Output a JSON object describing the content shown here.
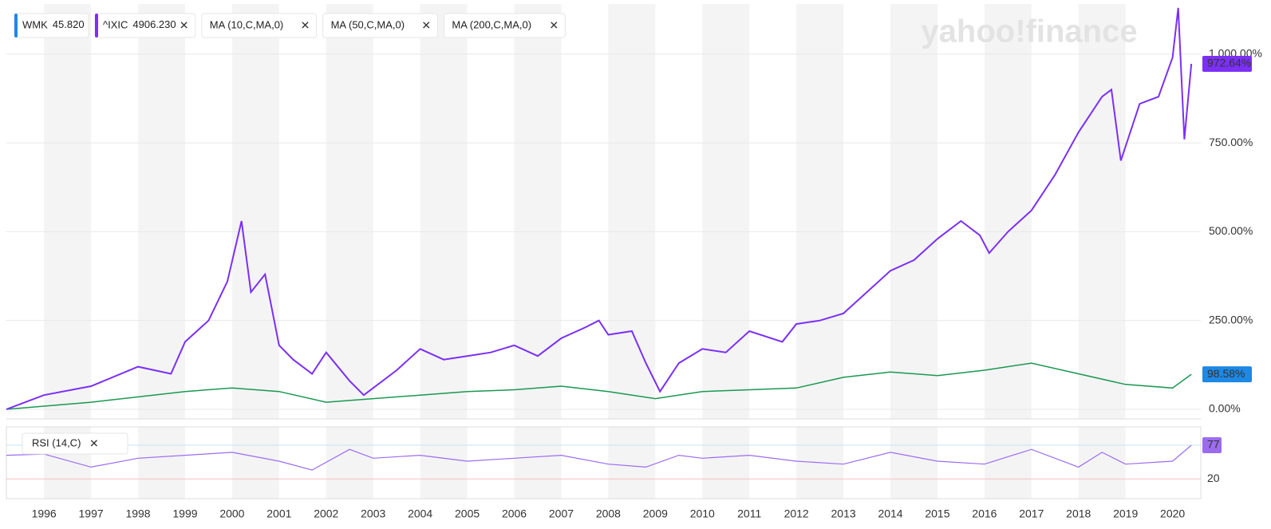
{
  "chart_data": {
    "type": "line",
    "watermark": "yahoo!finance",
    "legend": [
      {
        "symbol": "WMK",
        "price": "45.820",
        "color": "#1e88e5"
      },
      {
        "symbol": "^IXIC",
        "price": "4906.230",
        "color": "#7b2ff7"
      },
      {
        "symbol": "MA (10,C,MA,0)"
      },
      {
        "symbol": "MA (50,C,MA,0)"
      },
      {
        "symbol": "MA (200,C,MA,0)"
      }
    ],
    "xlim": [
      1995.2,
      2020.6
    ],
    "xticks": [
      1996,
      1997,
      1998,
      1999,
      2000,
      2001,
      2002,
      2003,
      2004,
      2005,
      2006,
      2007,
      2008,
      2009,
      2010,
      2011,
      2012,
      2013,
      2014,
      2015,
      2016,
      2017,
      2018,
      2019,
      2020
    ],
    "ylim": [
      -27,
      1141
    ],
    "yticks": [
      {
        "value": 0,
        "label": "0.00%"
      },
      {
        "value": 250,
        "label": "250.00%"
      },
      {
        "value": 500,
        "label": "500.00%"
      },
      {
        "value": 750,
        "label": "750.00%"
      },
      {
        "value": 1000,
        "label": "1,000.00%"
      }
    ],
    "grid": true,
    "series": [
      {
        "name": "WMK",
        "color": "#1a9850",
        "last_label": "98.58%",
        "label_color": "#1e88e5",
        "x": [
          1995.2,
          1997,
          1999,
          2000,
          2001,
          2002,
          2003,
          2004,
          2005,
          2006,
          2007,
          2008,
          2009,
          2010,
          2011,
          2012,
          2013,
          2014,
          2015,
          2016,
          2017,
          2018,
          2019,
          2020,
          2020.4
        ],
        "values": [
          0,
          20,
          50,
          60,
          50,
          20,
          30,
          40,
          50,
          55,
          65,
          50,
          30,
          50,
          55,
          60,
          90,
          105,
          95,
          110,
          130,
          100,
          70,
          60,
          98.58
        ]
      },
      {
        "name": "^IXIC",
        "color": "#7b2ff7",
        "last_label": "972.64%",
        "label_color": "#7b2ff7",
        "x": [
          1995.2,
          1996,
          1997,
          1998,
          1998.7,
          1999,
          1999.5,
          1999.9,
          2000.2,
          2000.4,
          2000.7,
          2001,
          2001.3,
          2001.7,
          2002,
          2002.5,
          2002.8,
          2003,
          2003.5,
          2004,
          2004.5,
          2005,
          2005.5,
          2006,
          2006.5,
          2007,
          2007.5,
          2007.8,
          2008,
          2008.5,
          2008.8,
          2009.1,
          2009.5,
          2010,
          2010.5,
          2011,
          2011.7,
          2012,
          2012.5,
          2013,
          2013.5,
          2014,
          2014.5,
          2015,
          2015.5,
          2015.9,
          2016.1,
          2016.5,
          2017,
          2017.5,
          2018,
          2018.5,
          2018.7,
          2018.9,
          2019.3,
          2019.7,
          2020.0,
          2020.12,
          2020.25,
          2020.4
        ],
        "values": [
          0,
          40,
          65,
          120,
          100,
          190,
          250,
          360,
          530,
          330,
          380,
          180,
          140,
          100,
          160,
          80,
          40,
          60,
          110,
          170,
          140,
          150,
          160,
          180,
          150,
          200,
          230,
          250,
          210,
          220,
          130,
          50,
          130,
          170,
          160,
          220,
          190,
          240,
          250,
          270,
          330,
          390,
          420,
          480,
          530,
          490,
          440,
          500,
          560,
          660,
          780,
          880,
          900,
          700,
          860,
          880,
          990,
          1130,
          760,
          972.64
        ]
      }
    ],
    "rsi": {
      "name": "RSI (14,C)",
      "color": "#9b6cf0",
      "ylim": [
        0,
        100
      ],
      "levels": [
        {
          "value": 77,
          "label": "77"
        },
        {
          "value": 20,
          "label": "20"
        }
      ],
      "x": [
        1995.2,
        1996,
        1997,
        1998,
        1999,
        2000,
        2001,
        2001.7,
        2002.5,
        2003,
        2004,
        2005,
        2006,
        2007,
        2008,
        2008.8,
        2009.5,
        2010,
        2011,
        2012,
        2013,
        2014,
        2015,
        2016,
        2017,
        2018,
        2018.5,
        2019,
        2020,
        2020.4
      ],
      "values": [
        60,
        62,
        40,
        55,
        60,
        65,
        50,
        35,
        70,
        55,
        60,
        50,
        55,
        60,
        45,
        40,
        60,
        55,
        60,
        50,
        45,
        65,
        50,
        45,
        70,
        40,
        65,
        45,
        50,
        77
      ]
    }
  }
}
